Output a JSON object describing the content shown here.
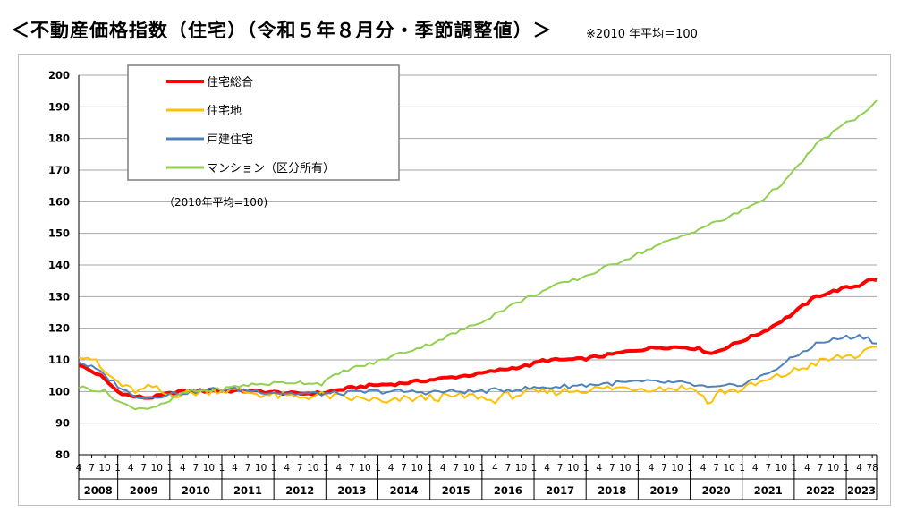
{
  "title": "＜不動産価格指数（住宅）（令和５年８月分・季節調整値）＞",
  "subtitle": "※2010 年平均＝100",
  "chart_data": {
    "type": "line",
    "annotation": "（2010年平均=100)",
    "ylim": [
      80,
      200
    ],
    "yticks": [
      80,
      90,
      100,
      110,
      120,
      130,
      140,
      150,
      160,
      170,
      180,
      190,
      200
    ],
    "x_start": "2008-04",
    "x_end": "2023-08",
    "years": [
      "2008",
      "2009",
      "2010",
      "2011",
      "2012",
      "2013",
      "2014",
      "2015",
      "2016",
      "2017",
      "2018",
      "2019",
      "2020",
      "2021",
      "2022",
      "2023"
    ],
    "month_ticks": [
      "4",
      "7",
      "10",
      "1",
      "4",
      "7",
      "10",
      "1",
      "4",
      "7",
      "10",
      "1",
      "4",
      "7",
      "10",
      "1",
      "4",
      "7",
      "10",
      "1",
      "4",
      "7",
      "10",
      "1",
      "4",
      "7",
      "10",
      "1",
      "4",
      "7",
      "10",
      "1",
      "4",
      "7",
      "10",
      "1",
      "4",
      "7",
      "10",
      "1",
      "4",
      "7",
      "10",
      "1",
      "4",
      "7",
      "10",
      "1",
      "4",
      "7",
      "10",
      "1",
      "4",
      "7",
      "10",
      "1",
      "4",
      "7",
      "10",
      "1",
      "4",
      "78"
    ],
    "grid": true,
    "legend_position": "top-left",
    "series": [
      {
        "name": "住宅総合",
        "color": "#ff0000",
        "stroke": 4,
        "anchors": [
          [
            "2008-04",
            108.5
          ],
          [
            "2008-09",
            105
          ],
          [
            "2009-01",
            100
          ],
          [
            "2009-04",
            98.5
          ],
          [
            "2009-08",
            98
          ],
          [
            "2009-12",
            99
          ],
          [
            "2010-03",
            100
          ],
          [
            "2010-12",
            100.3
          ],
          [
            "2011-06",
            100.2
          ],
          [
            "2011-12",
            99.8
          ],
          [
            "2012-06",
            99.3
          ],
          [
            "2012-12",
            99.5
          ],
          [
            "2013-06",
            101
          ],
          [
            "2013-12",
            102
          ],
          [
            "2014-06",
            102.5
          ],
          [
            "2014-12",
            103.5
          ],
          [
            "2015-06",
            104.5
          ],
          [
            "2015-12",
            105.5
          ],
          [
            "2016-06",
            107
          ],
          [
            "2016-12",
            108.3
          ],
          [
            "2017-03",
            109.8
          ],
          [
            "2017-12",
            110.2
          ],
          [
            "2018-06",
            111.5
          ],
          [
            "2018-12",
            113
          ],
          [
            "2019-06",
            114
          ],
          [
            "2019-12",
            114
          ],
          [
            "2020-03",
            113.5
          ],
          [
            "2020-06",
            112
          ],
          [
            "2020-12",
            115.5
          ],
          [
            "2021-06",
            119
          ],
          [
            "2021-12",
            124
          ],
          [
            "2022-06",
            130
          ],
          [
            "2022-12",
            132.5
          ],
          [
            "2023-04",
            133.5
          ],
          [
            "2023-06",
            135.5
          ],
          [
            "2023-08",
            135
          ]
        ]
      },
      {
        "name": "住宅地",
        "color": "#ffc000",
        "stroke": 2,
        "anchors": [
          [
            "2008-04",
            112
          ],
          [
            "2008-07",
            110.5
          ],
          [
            "2008-10",
            106
          ],
          [
            "2009-03",
            101
          ],
          [
            "2009-06",
            100
          ],
          [
            "2009-09",
            101.5
          ],
          [
            "2009-12",
            99
          ],
          [
            "2010-06",
            99.5
          ],
          [
            "2010-12",
            100.5
          ],
          [
            "2011-06",
            100
          ],
          [
            "2011-12",
            98.8
          ],
          [
            "2012-06",
            98.2
          ],
          [
            "2012-12",
            98.8
          ],
          [
            "2013-06",
            97.8
          ],
          [
            "2013-12",
            97.5
          ],
          [
            "2014-03",
            96
          ],
          [
            "2014-06",
            97.5
          ],
          [
            "2014-12",
            98
          ],
          [
            "2015-06",
            98.3
          ],
          [
            "2015-12",
            98.5
          ],
          [
            "2016-03",
            97
          ],
          [
            "2016-06",
            98.5
          ],
          [
            "2016-12",
            99.5
          ],
          [
            "2017-06",
            100
          ],
          [
            "2017-12",
            100.5
          ],
          [
            "2018-06",
            101
          ],
          [
            "2018-12",
            101.2
          ],
          [
            "2019-06",
            101
          ],
          [
            "2019-12",
            101.2
          ],
          [
            "2020-03",
            100.5
          ],
          [
            "2020-05",
            96
          ],
          [
            "2020-08",
            100
          ],
          [
            "2020-12",
            100.5
          ],
          [
            "2021-06",
            103
          ],
          [
            "2021-12",
            106
          ],
          [
            "2022-06",
            109
          ],
          [
            "2022-12",
            111
          ],
          [
            "2023-04",
            111.5
          ],
          [
            "2023-08",
            113.5
          ]
        ]
      },
      {
        "name": "戸建住宅",
        "color": "#4f81bd",
        "stroke": 2,
        "anchors": [
          [
            "2008-04",
            109.5
          ],
          [
            "2008-08",
            107
          ],
          [
            "2008-12",
            103
          ],
          [
            "2009-04",
            99
          ],
          [
            "2009-08",
            98
          ],
          [
            "2009-12",
            99
          ],
          [
            "2010-06",
            100
          ],
          [
            "2010-12",
            100.8
          ],
          [
            "2011-06",
            100.5
          ],
          [
            "2011-12",
            99.8
          ],
          [
            "2012-06",
            99.3
          ],
          [
            "2012-12",
            99.3
          ],
          [
            "2013-06",
            99.5
          ],
          [
            "2013-12",
            100
          ],
          [
            "2014-06",
            100
          ],
          [
            "2014-12",
            99.8
          ],
          [
            "2015-06",
            100
          ],
          [
            "2015-12",
            100
          ],
          [
            "2016-06",
            100.5
          ],
          [
            "2016-12",
            101
          ],
          [
            "2017-06",
            101.5
          ],
          [
            "2017-12",
            102
          ],
          [
            "2018-06",
            102.5
          ],
          [
            "2018-12",
            103
          ],
          [
            "2019-06",
            103
          ],
          [
            "2019-12",
            102.5
          ],
          [
            "2020-06",
            101
          ],
          [
            "2020-12",
            102
          ],
          [
            "2021-06",
            105
          ],
          [
            "2021-12",
            110
          ],
          [
            "2022-06",
            115
          ],
          [
            "2022-12",
            117
          ],
          [
            "2023-04",
            117.5
          ],
          [
            "2023-06",
            117
          ],
          [
            "2023-08",
            115
          ]
        ]
      },
      {
        "name": "マンション（区分所有）",
        "color": "#92d050",
        "stroke": 2,
        "anchors": [
          [
            "2008-04",
            101.5
          ],
          [
            "2008-10",
            100
          ],
          [
            "2009-01",
            97
          ],
          [
            "2009-04",
            95
          ],
          [
            "2009-08",
            94.8
          ],
          [
            "2009-12",
            96
          ],
          [
            "2010-03",
            99
          ],
          [
            "2010-06",
            100
          ],
          [
            "2010-12",
            100.5
          ],
          [
            "2011-06",
            102
          ],
          [
            "2011-12",
            102.5
          ],
          [
            "2012-06",
            103
          ],
          [
            "2012-12",
            102.5
          ],
          [
            "2013-01",
            103.5
          ],
          [
            "2013-06",
            107
          ],
          [
            "2013-12",
            109
          ],
          [
            "2014-06",
            112
          ],
          [
            "2014-12",
            114.5
          ],
          [
            "2015-06",
            118
          ],
          [
            "2015-12",
            121.5
          ],
          [
            "2016-06",
            126
          ],
          [
            "2016-12",
            130
          ],
          [
            "2017-06",
            133.5
          ],
          [
            "2017-12",
            136
          ],
          [
            "2018-06",
            139.5
          ],
          [
            "2018-12",
            143
          ],
          [
            "2019-06",
            146.5
          ],
          [
            "2019-12",
            149.5
          ],
          [
            "2020-03",
            151.5
          ],
          [
            "2020-05",
            152.5
          ],
          [
            "2020-09",
            154.5
          ],
          [
            "2020-12",
            156.5
          ],
          [
            "2021-06",
            161
          ],
          [
            "2021-12",
            168
          ],
          [
            "2022-06",
            178
          ],
          [
            "2022-12",
            184
          ],
          [
            "2023-04",
            187
          ],
          [
            "2023-08",
            191.5
          ]
        ]
      }
    ]
  }
}
